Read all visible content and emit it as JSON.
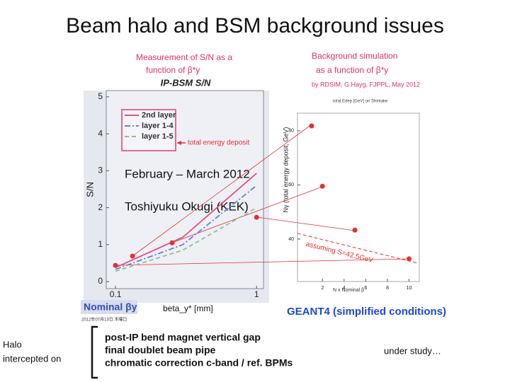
{
  "title": "Beam halo and BSM background issues",
  "chart_data": [
    {
      "type": "line",
      "title": "IP-BSM S/N",
      "heading": [
        "Measurement of S/N as a",
        "function of  β*y"
      ],
      "x_label": "beta_y* [mm]",
      "y_label": "S/N",
      "x": [
        0.1,
        0.3,
        1
      ],
      "xlog": true,
      "xlim": [
        0.086,
        1.12
      ],
      "xticks": [
        0.1,
        1
      ],
      "ylim": [
        -0.19,
        5.17
      ],
      "yticks": [
        0,
        1,
        2,
        3,
        4,
        5
      ],
      "legend": "upper left",
      "series": [
        {
          "name": "2nd layer",
          "color": "#e0507a",
          "linestyle": "solid",
          "values": [
            0.38,
            1.2,
            2.93
          ]
        },
        {
          "name": "layer 1-4",
          "color": "#6a7fd0",
          "linestyle": "dashdot",
          "values": [
            0.33,
            1.0,
            2.6
          ]
        },
        {
          "name": "layer 1-5",
          "color": "#8dc08d",
          "linestyle": "dashed",
          "values": [
            0.28,
            0.85,
            2.0
          ]
        }
      ],
      "points": {
        "color": "#e03030",
        "x": [
          0.1,
          0.132,
          0.252,
          1.0
        ],
        "y": [
          0.44,
          0.69,
          1.05,
          1.74
        ]
      },
      "annotations": [
        "total energy deposit",
        "February – March 2012",
        "Toshiyuku Okugi (KEK)",
        "Nominal βy",
        "2012年07月13日 木曜日"
      ]
    },
    {
      "type": "scatter",
      "heading": [
        "Background simulation",
        "as a function of β*y",
        "by RDSIM, G.Hayg, FJPPL, May 2012"
      ],
      "subtitle": "total Edep [GeV] on Shintake",
      "x_label": "N x Nominal β",
      "y_label": "Nγ (total energy deposit, GeV)",
      "xlim": [
        -0.3,
        10.95
      ],
      "xticks": [
        2,
        4,
        6,
        8,
        10
      ],
      "ylim": [
        24.3,
        86.5
      ],
      "yticks": [
        40,
        60,
        80
      ],
      "points": {
        "color": "#e03030",
        "x": [
          1,
          2,
          5,
          10
        ],
        "y": [
          81.8,
          59.5,
          43.3,
          32.7
        ]
      },
      "annotations": [
        "assuming S=42.5GeV"
      ]
    }
  ],
  "caption": "GEANT4 (simplified conditions)",
  "halo_label": [
    "Halo",
    "intercepted on"
  ],
  "items": [
    "post-IP bend magnet vertical gap",
    "final doublet beam pipe",
    "chromatic correction c-band / ref. BPMs"
  ],
  "status": "under study…"
}
